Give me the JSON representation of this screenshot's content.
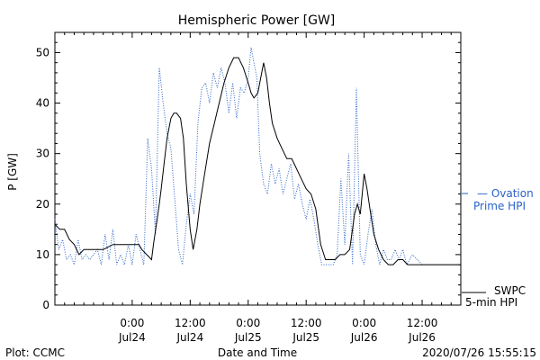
{
  "chart_data": {
    "type": "line",
    "title": "Hemispheric Power [GW]",
    "xlabel": "Date and Time",
    "ylabel": "P [GW]",
    "ylim": [
      0,
      54
    ],
    "xlim": [
      -8,
      34
    ],
    "y_ticks": [
      0,
      10,
      20,
      30,
      40,
      50
    ],
    "x_ticks": [
      {
        "x": 0,
        "time": "0:00",
        "date": "Jul24"
      },
      {
        "x": 6,
        "time": "12:00",
        "date": "Jul24"
      },
      {
        "x": 12,
        "time": "0:00",
        "date": "Jul25"
      },
      {
        "x": 18,
        "time": "12:00",
        "date": "Jul25"
      },
      {
        "x": 24,
        "time": "0:00",
        "date": "Jul26"
      },
      {
        "x": 30,
        "time": "12:00",
        "date": "Jul26"
      }
    ],
    "x_unit_note": "x in 2-hour steps relative to 2020-07-24 00:00",
    "grid": false,
    "legend": [
      {
        "label_line1": "— Ovation",
        "label_line2": "Prime HPI",
        "color": "#2a62c8",
        "style": "dotted"
      },
      {
        "label_line1": "SWPC",
        "label_line2": "5-min HPI",
        "color": "#000000",
        "style": "solid"
      }
    ],
    "series": [
      {
        "name": "SWPC 5-min HPI",
        "color": "#000000",
        "style": "solid",
        "points": [
          [
            -8,
            16
          ],
          [
            -7.5,
            15
          ],
          [
            -7,
            15
          ],
          [
            -6.5,
            13
          ],
          [
            -6,
            12
          ],
          [
            -5.5,
            10
          ],
          [
            -5,
            11
          ],
          [
            -4.5,
            11
          ],
          [
            -4,
            11
          ],
          [
            -3,
            11
          ],
          [
            -2,
            12
          ],
          [
            -1,
            12
          ],
          [
            0,
            12
          ],
          [
            0.7,
            12
          ],
          [
            1,
            11
          ],
          [
            1.5,
            10
          ],
          [
            2,
            9
          ],
          [
            2.2,
            12
          ],
          [
            2.5,
            16
          ],
          [
            2.8,
            20
          ],
          [
            3,
            23
          ],
          [
            3.3,
            28
          ],
          [
            3.6,
            33
          ],
          [
            4,
            37
          ],
          [
            4.3,
            38
          ],
          [
            4.6,
            38
          ],
          [
            5,
            37
          ],
          [
            5.3,
            33
          ],
          [
            5.6,
            24
          ],
          [
            6,
            15
          ],
          [
            6.3,
            11
          ],
          [
            6.7,
            15
          ],
          [
            7,
            20
          ],
          [
            7.5,
            26
          ],
          [
            8,
            32
          ],
          [
            8.5,
            36
          ],
          [
            9,
            40
          ],
          [
            9.5,
            44
          ],
          [
            10,
            47
          ],
          [
            10.5,
            49
          ],
          [
            11,
            49
          ],
          [
            11.5,
            47
          ],
          [
            12,
            44
          ],
          [
            12.3,
            42
          ],
          [
            12.6,
            41
          ],
          [
            13,
            42
          ],
          [
            13.3,
            45
          ],
          [
            13.6,
            48
          ],
          [
            13.9,
            45
          ],
          [
            14.2,
            40
          ],
          [
            14.5,
            36
          ],
          [
            15,
            33
          ],
          [
            15.5,
            31
          ],
          [
            16,
            29
          ],
          [
            16.5,
            29
          ],
          [
            17,
            27
          ],
          [
            17.5,
            25
          ],
          [
            18,
            23
          ],
          [
            18.5,
            22
          ],
          [
            19,
            19
          ],
          [
            19.5,
            12
          ],
          [
            20,
            9
          ],
          [
            20.5,
            9
          ],
          [
            21,
            9
          ],
          [
            21.5,
            10
          ],
          [
            22,
            10
          ],
          [
            22.5,
            11
          ],
          [
            22.8,
            15
          ],
          [
            23,
            18
          ],
          [
            23.3,
            20
          ],
          [
            23.6,
            18
          ],
          [
            24,
            26
          ],
          [
            24.3,
            23
          ],
          [
            24.6,
            19
          ],
          [
            25,
            14
          ],
          [
            25.5,
            11
          ],
          [
            26,
            9
          ],
          [
            26.5,
            8
          ],
          [
            27,
            8
          ],
          [
            27.5,
            9
          ],
          [
            28,
            9
          ],
          [
            28.5,
            8
          ],
          [
            29,
            8
          ],
          [
            30,
            8
          ],
          [
            31,
            8
          ],
          [
            32,
            8
          ],
          [
            33,
            8
          ],
          [
            34,
            8
          ]
        ]
      },
      {
        "name": "Ovation Prime HPI",
        "color": "#2a62c8",
        "style": "dotted",
        "points": [
          [
            -8,
            17
          ],
          [
            -7.6,
            11
          ],
          [
            -7.2,
            13
          ],
          [
            -6.8,
            9
          ],
          [
            -6.4,
            10
          ],
          [
            -6,
            8
          ],
          [
            -5.6,
            13
          ],
          [
            -5.2,
            9
          ],
          [
            -4.8,
            10
          ],
          [
            -4.4,
            9
          ],
          [
            -4,
            10
          ],
          [
            -3.6,
            11
          ],
          [
            -3.2,
            8
          ],
          [
            -2.8,
            14
          ],
          [
            -2.4,
            9
          ],
          [
            -2,
            15
          ],
          [
            -1.6,
            8
          ],
          [
            -1.2,
            10
          ],
          [
            -0.8,
            8
          ],
          [
            -0.4,
            12
          ],
          [
            0,
            8
          ],
          [
            0.4,
            14
          ],
          [
            0.8,
            11
          ],
          [
            1.2,
            8
          ],
          [
            1.6,
            33
          ],
          [
            2,
            27
          ],
          [
            2.4,
            14
          ],
          [
            2.8,
            47
          ],
          [
            3.2,
            40
          ],
          [
            3.6,
            34
          ],
          [
            4,
            31
          ],
          [
            4.4,
            21
          ],
          [
            4.8,
            11
          ],
          [
            5.2,
            8
          ],
          [
            5.6,
            16
          ],
          [
            6,
            22
          ],
          [
            6.4,
            18
          ],
          [
            6.8,
            36
          ],
          [
            7.2,
            43
          ],
          [
            7.6,
            44
          ],
          [
            8,
            40
          ],
          [
            8.4,
            46
          ],
          [
            8.8,
            43
          ],
          [
            9.2,
            47
          ],
          [
            9.6,
            44
          ],
          [
            10,
            38
          ],
          [
            10.4,
            44
          ],
          [
            10.8,
            37
          ],
          [
            11.2,
            43
          ],
          [
            11.6,
            42
          ],
          [
            12,
            45
          ],
          [
            12.3,
            51
          ],
          [
            12.6,
            48
          ],
          [
            12.9,
            45
          ],
          [
            13.2,
            30
          ],
          [
            13.6,
            24
          ],
          [
            14,
            22
          ],
          [
            14.4,
            28
          ],
          [
            14.8,
            24
          ],
          [
            15.2,
            27
          ],
          [
            15.6,
            22
          ],
          [
            16,
            25
          ],
          [
            16.4,
            28
          ],
          [
            16.8,
            21
          ],
          [
            17.2,
            24
          ],
          [
            17.6,
            20
          ],
          [
            18,
            17
          ],
          [
            18.4,
            21
          ],
          [
            18.8,
            17
          ],
          [
            19.2,
            12
          ],
          [
            19.6,
            8
          ],
          [
            20,
            8
          ],
          [
            20.4,
            8
          ],
          [
            20.8,
            8
          ],
          [
            21.2,
            10
          ],
          [
            21.6,
            25
          ],
          [
            22,
            12
          ],
          [
            22.4,
            30
          ],
          [
            22.8,
            8
          ],
          [
            23.2,
            43
          ],
          [
            23.6,
            10
          ],
          [
            24,
            8
          ],
          [
            24.4,
            14
          ],
          [
            24.8,
            19
          ],
          [
            25.2,
            12
          ],
          [
            25.6,
            8
          ],
          [
            26,
            11
          ],
          [
            26.4,
            9
          ],
          [
            26.8,
            9
          ],
          [
            27.2,
            11
          ],
          [
            27.6,
            9
          ],
          [
            28,
            11
          ],
          [
            28.4,
            8
          ],
          [
            29,
            10
          ],
          [
            30,
            8
          ],
          [
            31,
            8
          ],
          [
            32,
            8
          ],
          [
            33,
            8
          ],
          [
            34,
            8
          ]
        ]
      }
    ]
  },
  "footer": {
    "left": "Plot: CCMC",
    "center": "Date and Time",
    "right": "2020/07/26 15:55:15"
  }
}
